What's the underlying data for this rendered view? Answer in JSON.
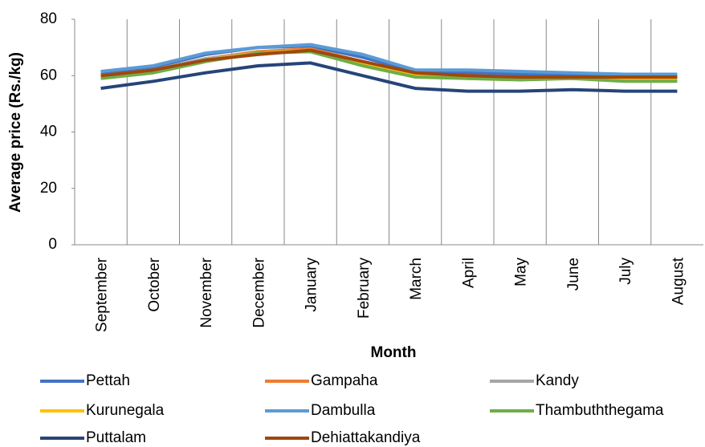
{
  "chart_data": {
    "type": "line",
    "x_label": "Month",
    "y_label": "Average price (Rs./kg)",
    "categories": [
      "September",
      "October",
      "November",
      "December",
      "January",
      "February",
      "March",
      "April",
      "May",
      "June",
      "July",
      "August"
    ],
    "ylim": [
      0,
      80
    ],
    "yticks": [
      0,
      20,
      40,
      60,
      80
    ],
    "grid": "vertical",
    "series": [
      {
        "name": "Pettah",
        "color": "#4472c4",
        "values": [
          61,
          63,
          67.5,
          70,
          70.5,
          66.5,
          61.5,
          61,
          60.5,
          60.5,
          60,
          60
        ]
      },
      {
        "name": "Gampaha",
        "color": "#ed7d31",
        "values": [
          60,
          62,
          66,
          68.5,
          69.5,
          65,
          60.5,
          60,
          59.5,
          59.5,
          59,
          59
        ]
      },
      {
        "name": "Kandy",
        "color": "#a5a5a5",
        "values": [
          60,
          62,
          66,
          68,
          69,
          64.5,
          60,
          59.5,
          59,
          59.5,
          59,
          59
        ]
      },
      {
        "name": "Kurunegala",
        "color": "#ffc000",
        "values": [
          59.5,
          61.5,
          65.5,
          68,
          69,
          64,
          60,
          59,
          59,
          59,
          58.5,
          58.5
        ]
      },
      {
        "name": "Dambulla",
        "color": "#5b9bd5",
        "values": [
          61.5,
          63.5,
          68,
          70,
          71,
          67.5,
          62,
          62,
          61.5,
          61,
          60.5,
          60.5
        ]
      },
      {
        "name": "Thambuththegama",
        "color": "#70ad47",
        "values": [
          59,
          61,
          65,
          68,
          68.5,
          63.5,
          59.5,
          59,
          58.5,
          59,
          58,
          58
        ]
      },
      {
        "name": "Puttalam",
        "color": "#264478",
        "values": [
          55.5,
          58,
          61,
          63.5,
          64.5,
          60,
          55.5,
          54.5,
          54.5,
          55,
          54.5,
          54.5
        ]
      },
      {
        "name": "Dehiattakandiya",
        "color": "#9e480e",
        "values": [
          60,
          62,
          65.5,
          67.5,
          69,
          65,
          61,
          60,
          59.5,
          59.5,
          59.5,
          59.5
        ]
      }
    ]
  }
}
